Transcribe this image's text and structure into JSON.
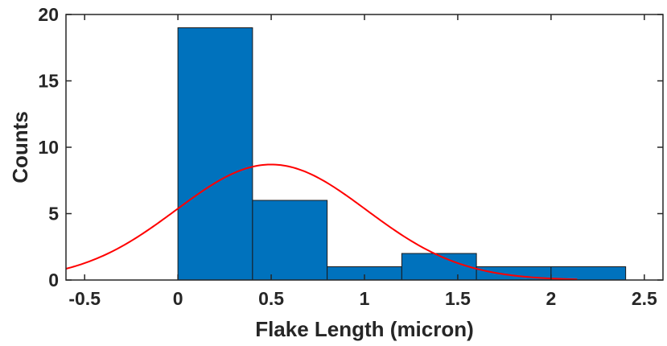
{
  "chart_data": {
    "type": "bar",
    "subtype": "histogram",
    "title": "",
    "xlabel": "Flake Length (micron)",
    "ylabel": "Counts",
    "xlim": [
      -0.6,
      2.6
    ],
    "ylim": [
      0,
      20
    ],
    "grid": false,
    "x_ticks": [
      -0.5,
      0,
      0.5,
      1,
      1.5,
      2,
      2.5
    ],
    "x_tick_labels": [
      "-0.5",
      "0",
      "0.5",
      "1",
      "1.5",
      "2",
      "2.5"
    ],
    "y_ticks": [
      0,
      5,
      10,
      15,
      20
    ],
    "y_tick_labels": [
      "0",
      "5",
      "10",
      "15",
      "20"
    ],
    "bins": [
      {
        "start": 0.0,
        "end": 0.4,
        "count": 19
      },
      {
        "start": 0.4,
        "end": 0.8,
        "count": 6
      },
      {
        "start": 0.8,
        "end": 1.2,
        "count": 1
      },
      {
        "start": 1.2,
        "end": 1.6,
        "count": 2
      },
      {
        "start": 1.6,
        "end": 2.0,
        "count": 1
      },
      {
        "start": 2.0,
        "end": 2.4,
        "count": 1
      }
    ],
    "fit_curve": {
      "type": "normal",
      "mean": 0.5,
      "peak": 8.7,
      "sigma": 0.51,
      "x_range": [
        -0.6,
        2.14
      ]
    },
    "colors": {
      "bar_fill": "#0072BD",
      "bar_edge": "#1a1a1a",
      "fit_line": "#ff0000",
      "axis": "#262626"
    }
  }
}
